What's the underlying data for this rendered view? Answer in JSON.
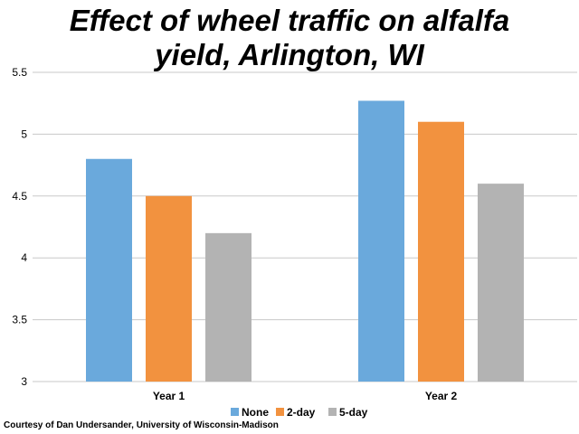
{
  "chart_data": {
    "type": "bar",
    "title_line1": "Effect of wheel traffic on alfalfa",
    "title_line2": "yield, Arlington, WI",
    "categories": [
      "Year 1",
      "Year 2"
    ],
    "series": [
      {
        "name": "None",
        "color": "#6aa9dc",
        "values": [
          4.8,
          5.27
        ]
      },
      {
        "name": "2-day",
        "color": "#f2923f",
        "values": [
          4.5,
          5.1
        ]
      },
      {
        "name": "5-day",
        "color": "#b3b3b3",
        "values": [
          4.2,
          4.6
        ]
      }
    ],
    "ylim": [
      3,
      5.5
    ],
    "yticks": [
      "3",
      "3.5",
      "4",
      "4.5",
      "5",
      "5.5"
    ],
    "grid": true,
    "legend_placement": "bottom-center"
  },
  "credit": "Courtesy of Dan Undersander, University of Wisconsin-Madison"
}
